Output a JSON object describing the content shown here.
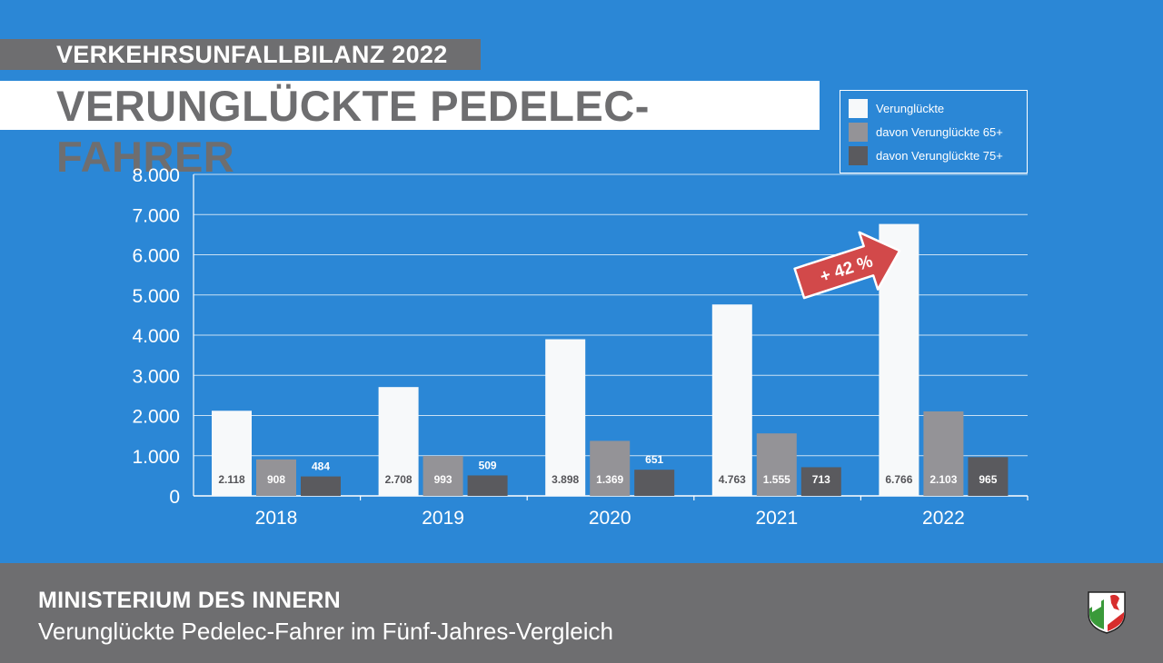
{
  "kicker": "VERKEHRSUNFALLBILANZ 2022",
  "headline": "VERUNGLÜCKTE PEDELEC-FAHRER",
  "footer": {
    "title": "MINISTERIUM DES INNERN",
    "subtitle": "Verunglückte Pedelec-Fahrer im Fünf-Jahres-Vergleich"
  },
  "colors": {
    "background": "#2b87d6",
    "footer": "#6e6e70",
    "kicker_bar": "#6e6e70",
    "headline_text": "#6e6e70",
    "series_white": "#f7f9fa",
    "series_light_gray": "#949397",
    "series_dark_gray": "#5a5a5e",
    "arrow": "#d2494a"
  },
  "crest_icon": "nrw-coat-of-arms-icon",
  "chart_data": {
    "type": "bar",
    "categories": [
      "2018",
      "2019",
      "2020",
      "2021",
      "2022"
    ],
    "series": [
      {
        "name": "Verunglückte",
        "values": [
          2118,
          2708,
          3898,
          4763,
          6766
        ],
        "labels": [
          "2.118",
          "2.708",
          "3.898",
          "4.763",
          "6.766"
        ],
        "color": "#f7f9fa"
      },
      {
        "name": "davon Verunglückte 65+",
        "values": [
          908,
          993,
          1369,
          1555,
          2103
        ],
        "labels": [
          "908",
          "993",
          "1.369",
          "1.555",
          "2.103"
        ],
        "color": "#949397"
      },
      {
        "name": "davon Verunglückte 75+",
        "values": [
          484,
          509,
          651,
          713,
          965
        ],
        "labels": [
          "484",
          "509",
          "651",
          "713",
          "965"
        ],
        "color": "#5a5a5e"
      }
    ],
    "yticks": [
      "0",
      "1.000",
      "2.000",
      "3.000",
      "4.000",
      "5.000",
      "6.000",
      "7.000",
      "8.000"
    ],
    "ylim": [
      0,
      8000
    ],
    "grid": true,
    "legend": "top-right",
    "annotation": "+ 42 %"
  }
}
